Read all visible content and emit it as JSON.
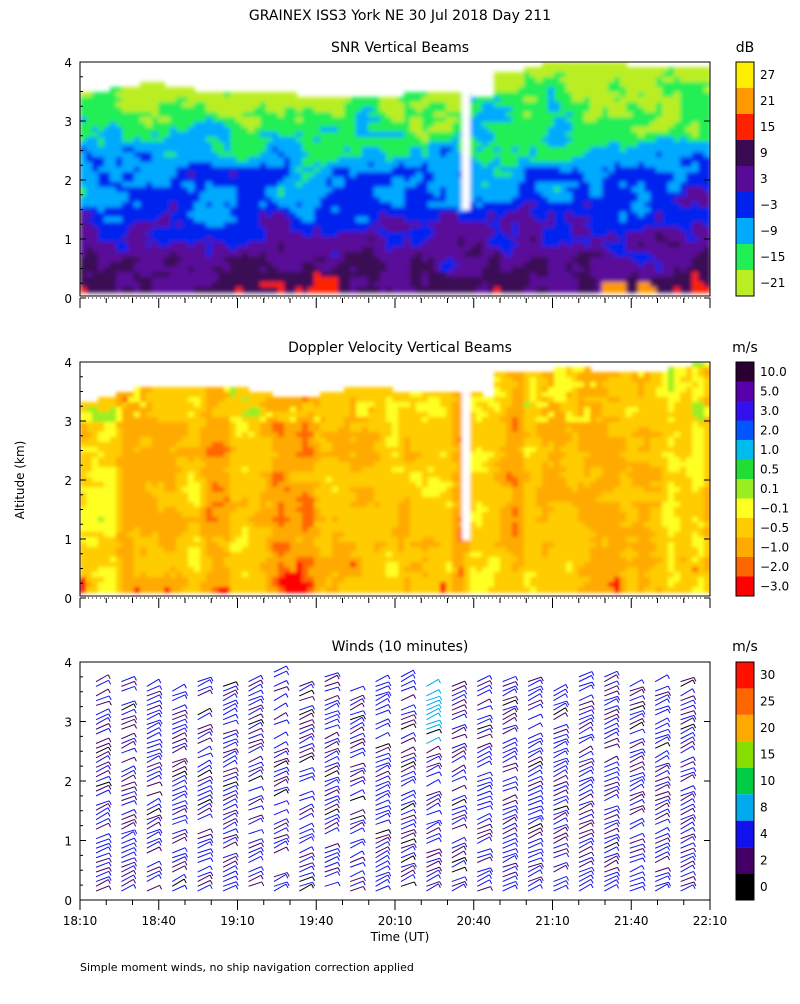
{
  "figure": {
    "title": "GRAINEX ISS3 York NE  30 Jul 2018 Day 211",
    "ylabel": "Altitude (km)",
    "xlabel": "Time (UT)",
    "footnote": "Simple moment winds, no ship navigation correction applied"
  },
  "chart_data": [
    {
      "type": "heatmap",
      "title": "SNR Vertical Beams",
      "colorbar_unit": "dB",
      "colorbar_labels": [
        "27",
        "21",
        "15",
        "9",
        "3",
        "−3",
        "−9",
        "−15",
        "−21"
      ],
      "colorbar_colors": [
        "#ffee00",
        "#ff9900",
        "#ff2200",
        "#3a0a55",
        "#5a0a99",
        "#0022ee",
        "#00aaff",
        "#22ee55",
        "#bbee22"
      ],
      "y_ticks": [
        "0",
        "1",
        "2",
        "3",
        "4"
      ],
      "ylim": [
        0,
        4
      ],
      "xlim": [
        "18:10",
        "22:10"
      ]
    },
    {
      "type": "heatmap",
      "title": "Doppler Velocity Vertical Beams",
      "colorbar_unit": "m/s",
      "colorbar_labels": [
        "10.0",
        "5.0",
        "3.0",
        "2.0",
        "1.0",
        "0.5",
        "0.1",
        "−0.1",
        "−0.5",
        "−1.0",
        "−2.0",
        "−3.0"
      ],
      "colorbar_colors": [
        "#2a0033",
        "#5a00aa",
        "#3311ee",
        "#0055ff",
        "#00bbee",
        "#22dd33",
        "#99ee22",
        "#ffff22",
        "#ffcc00",
        "#ffaa00",
        "#ff6600",
        "#ff0000"
      ],
      "y_ticks": [
        "0",
        "1",
        "2",
        "3",
        "4"
      ],
      "ylim": [
        0,
        4
      ],
      "xlim": [
        "18:10",
        "22:10"
      ]
    },
    {
      "type": "scatter",
      "title": "Winds (10 minutes)",
      "colorbar_unit": "m/s",
      "colorbar_labels": [
        "30",
        "25",
        "20",
        "15",
        "10",
        "8",
        "4",
        "2",
        "0"
      ],
      "colorbar_colors": [
        "#ff1100",
        "#ff6600",
        "#ffaa00",
        "#88dd00",
        "#00cc44",
        "#00aaee",
        "#1111ee",
        "#440066",
        "#000000"
      ],
      "y_ticks": [
        "0",
        "1",
        "2",
        "3",
        "4"
      ],
      "ylim": [
        0,
        4
      ],
      "x_ticks": [
        "18:10",
        "18:40",
        "19:10",
        "19:40",
        "20:10",
        "20:40",
        "21:10",
        "21:40",
        "22:10"
      ],
      "xlim": [
        "18:10",
        "22:10"
      ]
    }
  ]
}
